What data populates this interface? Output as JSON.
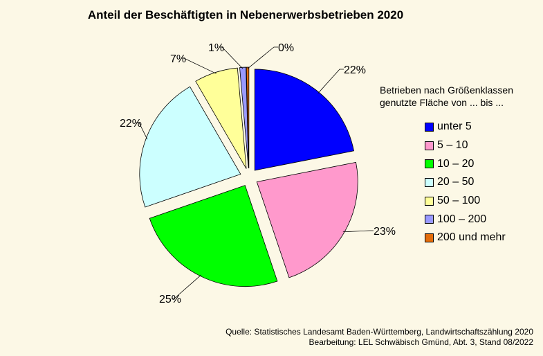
{
  "chart_data": {
    "type": "pie",
    "title": "Anteil der Beschäftigten in Nebenerwerbsbetrieben 2020",
    "legend_title": [
      "Betrieben nach Größenklassen",
      "genutzte  Fläche von ... bis ..."
    ],
    "legend_placement": "right",
    "categories": [
      "unter 5",
      "5 – 10",
      "10 – 20",
      "20 – 50",
      "50 – 100",
      "100 – 200",
      "200 und mehr"
    ],
    "values": [
      22,
      23,
      25,
      22,
      7,
      1,
      0
    ],
    "labels": [
      "22%",
      "23%",
      "25%",
      "22%",
      "7%",
      "1%",
      "0%"
    ],
    "colors": [
      "#0000ff",
      "#ff99cc",
      "#00ff00",
      "#ccffff",
      "#ffff99",
      "#9999ff",
      "#e36c0a"
    ],
    "exploded": true
  },
  "source": [
    "Quelle:  Statistisches Landesamt Baden-Württemberg,  Landwirtschaftszählung  2020",
    "Bearbeitung:  LEL Schwäbisch Gmünd,  Abt. 3,  Stand 08/2022"
  ]
}
